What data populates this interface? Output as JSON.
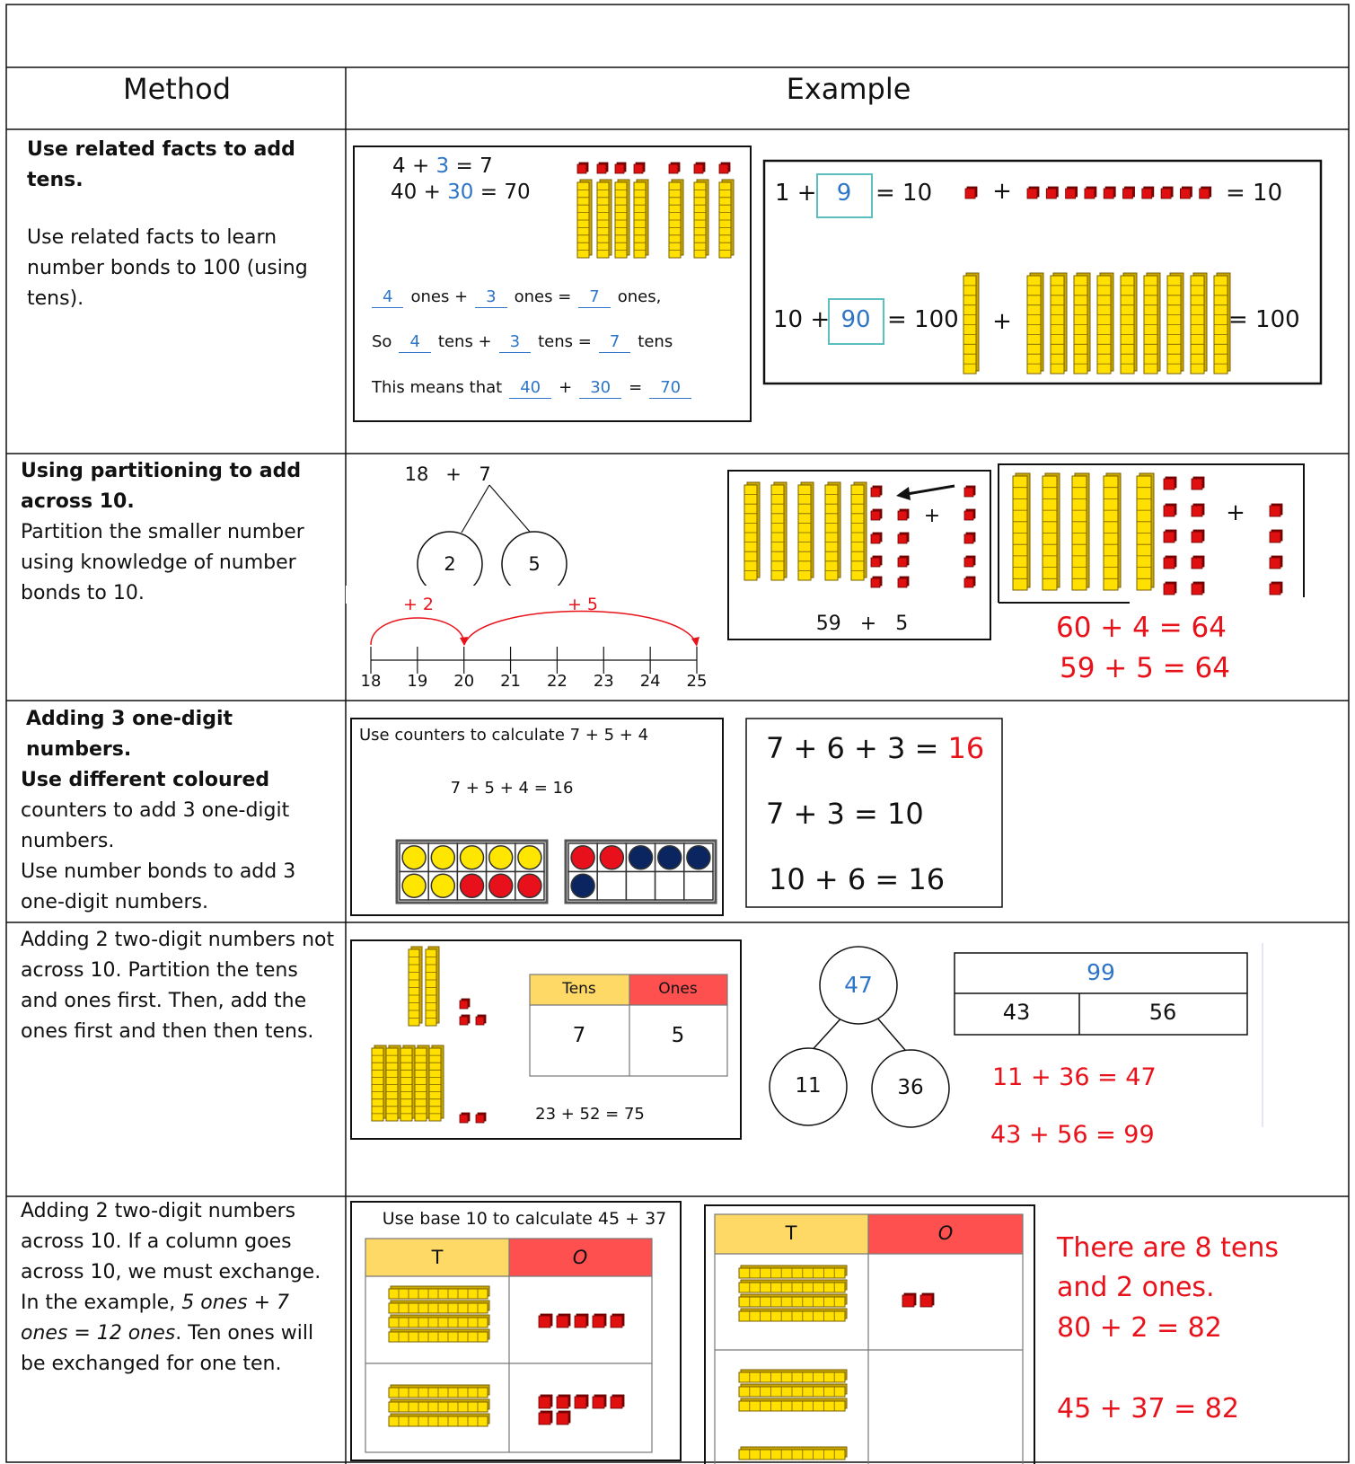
{
  "columns": [
    "Method",
    "Example"
  ],
  "rows": [
    {
      "method": {
        "heading": "Use related facts to add tens.",
        "text": "Use related facts to learn number bonds to 100 (using tens)."
      },
      "example": {
        "fact_ones": [
          "4 + ",
          "3",
          " = 7"
        ],
        "fact_tens": [
          "40 + ",
          "30",
          " = 70"
        ],
        "ones_line": [
          "4",
          "ones +",
          "3",
          "ones =",
          "7",
          "ones,"
        ],
        "tens_line": [
          "So",
          "4",
          "tens +",
          "3",
          "tens =",
          "7",
          "tens"
        ],
        "means_line": [
          "This means that",
          "40",
          "+",
          "30",
          "=",
          "70"
        ],
        "bond_10": [
          "1 +",
          "9",
          "= 10",
          "+",
          "= 10"
        ],
        "bond_100": [
          "10 +",
          "90",
          "= 100",
          "+",
          "= 100"
        ]
      }
    },
    {
      "method": {
        "heading": "Using partitioning to add across 10.",
        "text": "Partition the smaller number using knowledge of number bonds to 10."
      },
      "example": {
        "sum": [
          "18",
          "+",
          "7"
        ],
        "parts": [
          "2",
          "5"
        ],
        "jumps": [
          "+ 2",
          "+ 5"
        ],
        "number_line": [
          18,
          19,
          20,
          21,
          22,
          23,
          24,
          25
        ],
        "plus_signs": [
          "+",
          "+"
        ],
        "card_sum": "59   +   5",
        "results": [
          "60 + 4 = 64",
          "59 + 5 = 64"
        ]
      }
    },
    {
      "method": {
        "heading": [
          "Adding 3 one-digit numbers.",
          "Use different coloured"
        ],
        "text": [
          "counters to add 3 one-digit numbers.",
          "Use number bonds to add 3 one-digit numbers."
        ]
      },
      "example": {
        "prompt": "Use counters to calculate 7 + 5 + 4",
        "counter_sum": "7 + 5 + 4 = 16",
        "total_line": [
          "7 + 6 + 3 = ",
          "16"
        ],
        "steps": [
          "7 + 3 = 10",
          "10 + 6 = 16"
        ]
      }
    },
    {
      "method": {
        "text": "Adding 2 two-digit numbers not across 10. Partition the tens and ones first. Then, add the ones first and then then tens."
      },
      "example": {
        "place_value": {
          "headers": [
            "Tens",
            "Ones"
          ],
          "values": [
            "7",
            "5"
          ]
        },
        "card_sum": "23 + 52 = 75",
        "tree": {
          "whole": "47",
          "parts": [
            "11",
            "36"
          ]
        },
        "bar_model": {
          "whole": "99",
          "parts": [
            "43",
            "56"
          ]
        },
        "results": [
          "11 + 36 = 47",
          "43 + 56 = 99"
        ]
      }
    },
    {
      "method": {
        "text": [
          "Adding 2 two-digit numbers across 10. If a column goes across 10, we must exchange. In the example, ",
          "5 ones + 7 ones = 12 ones",
          ". Ten ones will be exchanged for one ten."
        ]
      },
      "example": {
        "prompt": "Use base 10 to calculate 45 + 37",
        "headers": [
          "T",
          "O"
        ],
        "exchange_headers": [
          "T",
          "O"
        ],
        "results": [
          "There are 8 tens and 2 ones.",
          "80 + 2 = 82",
          "45 + 37 = 82"
        ]
      }
    }
  ]
}
